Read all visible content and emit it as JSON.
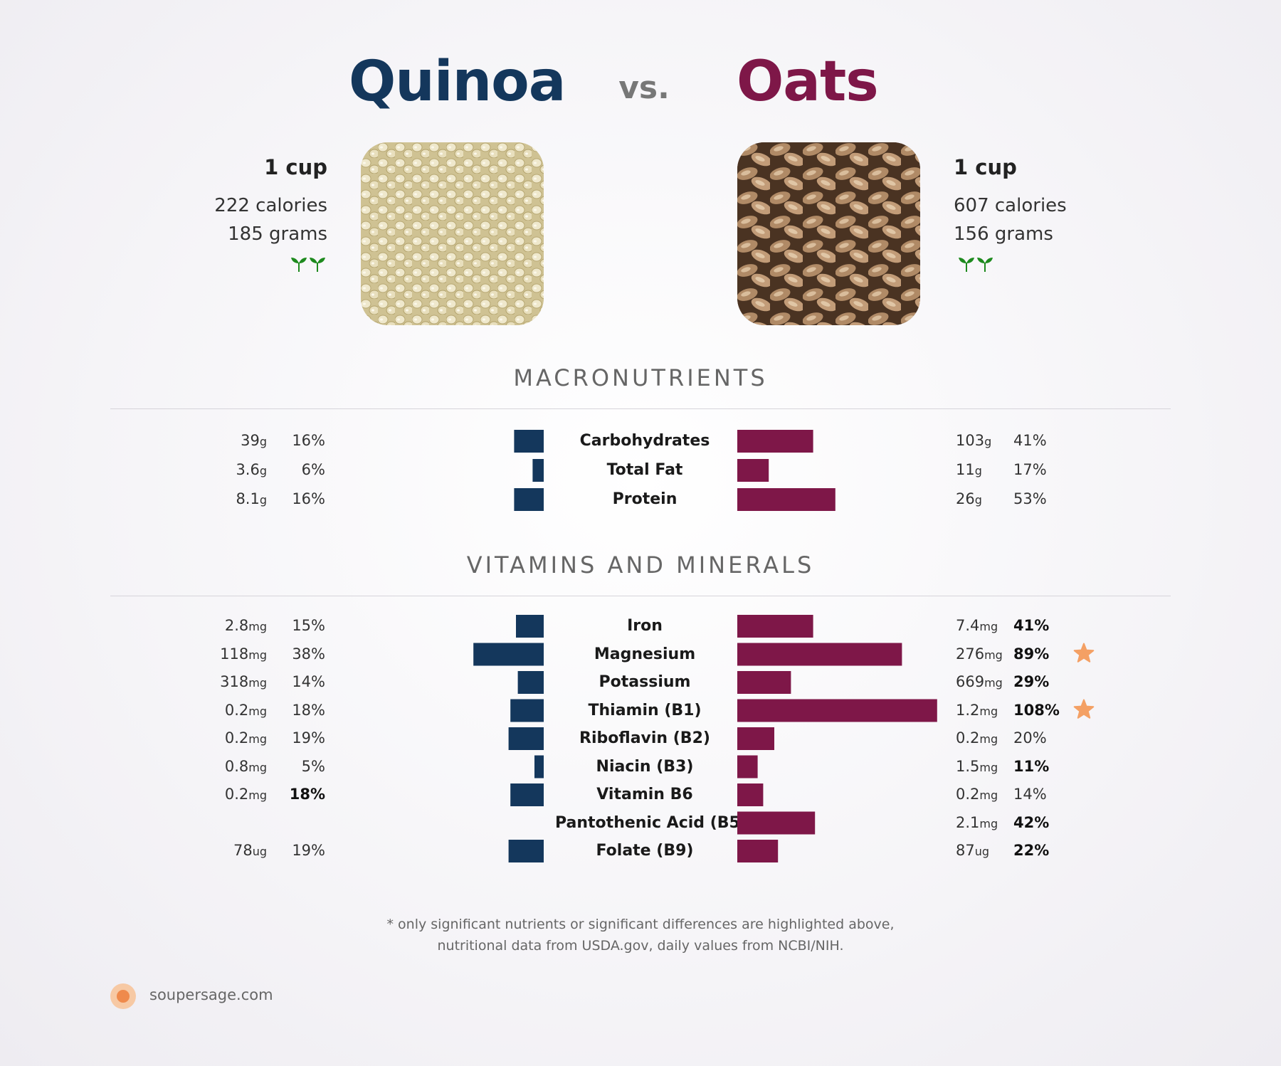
{
  "header": {
    "left_food": "Quinoa",
    "vs": "vs.",
    "right_food": "Oats"
  },
  "left": {
    "serving": "1 cup",
    "calories": "222 calories",
    "grams": "185 grams"
  },
  "right": {
    "serving": "1 cup",
    "calories": "607 calories",
    "grams": "156 grams"
  },
  "colors": {
    "left": "#14375c",
    "right": "#7e1748",
    "star": "#f4a064",
    "sprout": "#1e8a1e"
  },
  "icons": {
    "sprout": "sprout-icon",
    "star": "star-icon",
    "brand": "brand-logo-icon"
  },
  "sections": {
    "macro_title": "MACRONUTRIENTS",
    "vitamin_title": "VITAMINS AND MINERALS"
  },
  "chart_data": [
    {
      "type": "bar",
      "title": "MACRONUTRIENTS",
      "categories": [
        "Carbohydrates",
        "Total Fat",
        "Protein"
      ],
      "series": [
        {
          "name": "Quinoa",
          "amounts": [
            "39",
            "3.6",
            "8.1"
          ],
          "units": [
            "g",
            "g",
            "g"
          ],
          "values": [
            16,
            6,
            16
          ],
          "percent_labels": [
            "16%",
            "6%",
            "16%"
          ],
          "bold": [
            false,
            false,
            false
          ]
        },
        {
          "name": "Oats",
          "amounts": [
            "103",
            "11",
            "26"
          ],
          "units": [
            "g",
            "g",
            "g"
          ],
          "values": [
            41,
            17,
            53
          ],
          "percent_labels": [
            "41%",
            "17%",
            "53%"
          ],
          "bold": [
            false,
            false,
            false
          ]
        }
      ]
    },
    {
      "type": "bar",
      "title": "VITAMINS AND MINERALS",
      "categories": [
        "Iron",
        "Magnesium",
        "Potassium",
        "Thiamin (B1)",
        "Riboflavin (B2)",
        "Niacin (B3)",
        "Vitamin B6",
        "Pantothenic Acid (B5)",
        "Folate (B9)"
      ],
      "series": [
        {
          "name": "Quinoa",
          "amounts": [
            "2.8",
            "118",
            "318",
            "0.2",
            "0.2",
            "0.8",
            "0.2",
            "",
            "78"
          ],
          "units": [
            "mg",
            "mg",
            "mg",
            "mg",
            "mg",
            "mg",
            "mg",
            "",
            "ug"
          ],
          "values": [
            15,
            38,
            14,
            18,
            19,
            5,
            18,
            0,
            19
          ],
          "percent_labels": [
            "15%",
            "38%",
            "14%",
            "18%",
            "19%",
            "5%",
            "18%",
            "",
            "19%"
          ],
          "bold": [
            false,
            false,
            false,
            false,
            false,
            false,
            true,
            false,
            false
          ]
        },
        {
          "name": "Oats",
          "amounts": [
            "7.4",
            "276",
            "669",
            "1.2",
            "0.2",
            "1.5",
            "0.2",
            "2.1",
            "87"
          ],
          "units": [
            "mg",
            "mg",
            "mg",
            "mg",
            "mg",
            "mg",
            "mg",
            "mg",
            "ug"
          ],
          "values": [
            41,
            89,
            29,
            108,
            20,
            11,
            14,
            42,
            22
          ],
          "percent_labels": [
            "41%",
            "89%",
            "29%",
            "108%",
            "20%",
            "11%",
            "14%",
            "42%",
            "22%"
          ],
          "bold": [
            true,
            true,
            true,
            true,
            false,
            true,
            false,
            true,
            true
          ],
          "stars": [
            false,
            true,
            false,
            true,
            false,
            false,
            false,
            false,
            false
          ]
        }
      ]
    }
  ],
  "footer": {
    "note_line1": "* only significant nutrients or significant differences are highlighted above,",
    "note_line2": "nutritional data from USDA.gov, daily values from NCBI/NIH.",
    "brand": "soupersage.com"
  }
}
